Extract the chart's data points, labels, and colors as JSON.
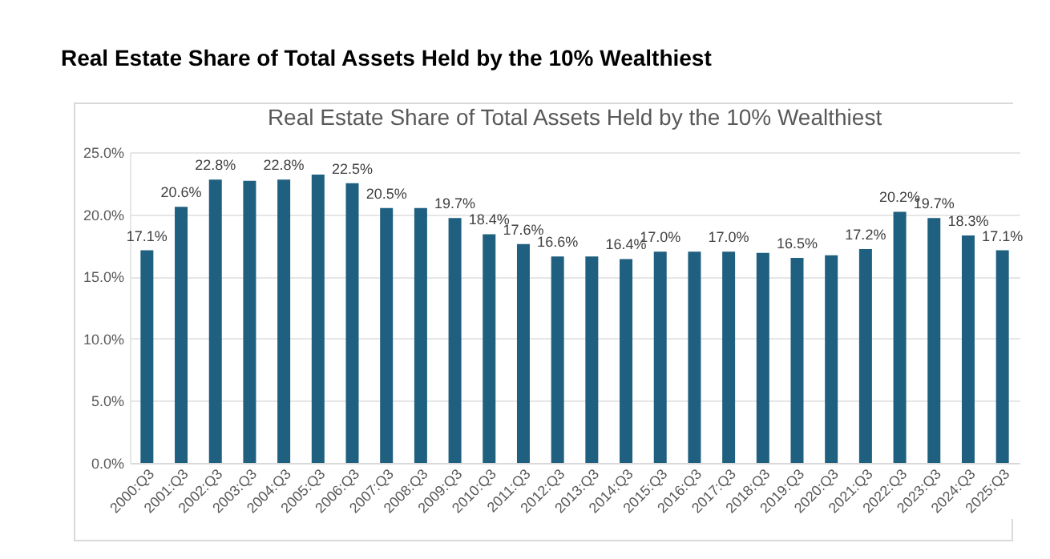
{
  "chart_data": {
    "type": "bar",
    "title": "Real Estate Share of Total Assets Held by the 10% Wealthiest",
    "subtitle": "Real Estate Share of Total Assets Held by the 10% Wealthiest",
    "categories": [
      "2000:Q3",
      "2001:Q3",
      "2002:Q3",
      "2003:Q3",
      "2004:Q3",
      "2005:Q3",
      "2006:Q3",
      "2007:Q3",
      "2008:Q3",
      "2009:Q3",
      "2010:Q3",
      "2011:Q3",
      "2012:Q3",
      "2013:Q3",
      "2014:Q3",
      "2015:Q3",
      "2016:Q3",
      "2017:Q3",
      "2018:Q3",
      "2019:Q3",
      "2020:Q3",
      "2021:Q3",
      "2022:Q3",
      "2023:Q3",
      "2024:Q3",
      "2025:Q3"
    ],
    "values": [
      17.1,
      20.6,
      22.8,
      22.7,
      22.8,
      23.2,
      22.5,
      20.5,
      20.5,
      19.7,
      18.4,
      17.6,
      16.6,
      16.6,
      16.4,
      17.0,
      17.0,
      17.0,
      16.9,
      16.5,
      16.7,
      17.2,
      20.2,
      19.7,
      18.3,
      17.1
    ],
    "value_labels": [
      "17.1%",
      "20.6%",
      "22.8%",
      null,
      "22.8%",
      null,
      "22.5%",
      "20.5%",
      null,
      "19.7%",
      "18.4%",
      "17.6%",
      "16.6%",
      null,
      "16.4%",
      "17.0%",
      null,
      "17.0%",
      null,
      "16.5%",
      null,
      "17.2%",
      "20.2%",
      "19.7%",
      "18.3%",
      "17.1%"
    ],
    "color": "#1f5f7f",
    "ylim": [
      0,
      25
    ],
    "yticks": [
      {
        "value": 0,
        "label": "0.0%"
      },
      {
        "value": 5,
        "label": "5.0%"
      },
      {
        "value": 10,
        "label": "10.0%"
      },
      {
        "value": 15,
        "label": "15.0%"
      },
      {
        "value": 20,
        "label": "20.0%"
      },
      {
        "value": 25,
        "label": "25.0%"
      }
    ],
    "grid": "y"
  }
}
